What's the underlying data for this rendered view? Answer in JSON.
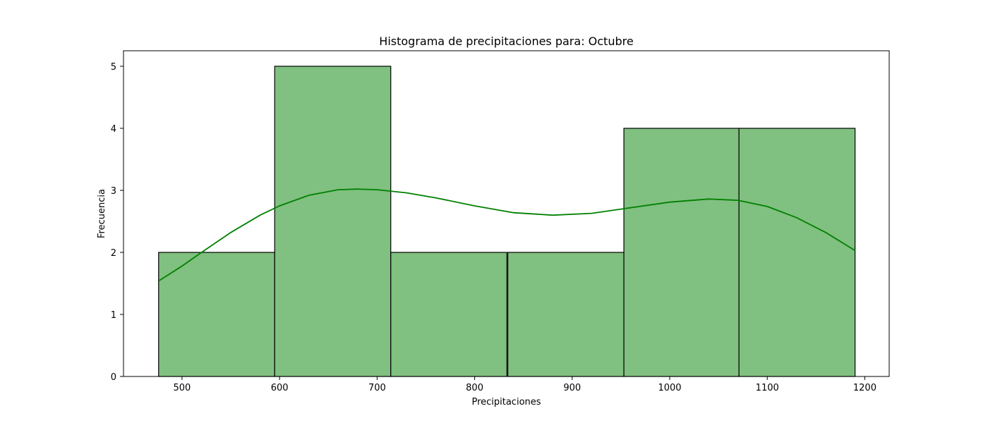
{
  "chart_data": {
    "type": "bar",
    "subtype": "histogram",
    "title": "Histograma de precipitaciones para: Octubre",
    "xlabel": "Precipitaciones",
    "ylabel": "Frecuencia",
    "xlim": [
      440,
      1225
    ],
    "ylim": [
      0,
      5.25
    ],
    "x_ticks": [
      500,
      600,
      700,
      800,
      900,
      1000,
      1100,
      1200
    ],
    "y_ticks": [
      0,
      1,
      2,
      3,
      4,
      5
    ],
    "bins": [
      {
        "start": 476,
        "end": 595,
        "count": 2
      },
      {
        "start": 595,
        "end": 714,
        "count": 5
      },
      {
        "start": 714,
        "end": 833,
        "count": 2
      },
      {
        "start": 834,
        "end": 953,
        "count": 2
      },
      {
        "start": 953,
        "end": 1071,
        "count": 4
      },
      {
        "start": 1071,
        "end": 1190,
        "count": 4
      }
    ],
    "kde": {
      "x": [
        476,
        500,
        520,
        550,
        580,
        600,
        630,
        660,
        680,
        700,
        730,
        760,
        800,
        840,
        880,
        920,
        960,
        1000,
        1040,
        1070,
        1100,
        1130,
        1160,
        1190
      ],
      "y": [
        1.54,
        1.78,
        2.0,
        2.32,
        2.6,
        2.75,
        2.92,
        3.01,
        3.02,
        3.01,
        2.96,
        2.88,
        2.75,
        2.64,
        2.6,
        2.63,
        2.72,
        2.81,
        2.86,
        2.84,
        2.74,
        2.56,
        2.32,
        2.03
      ]
    },
    "grid": false,
    "colors": {
      "bar_fill": "#80c080",
      "bar_edge": "#000000",
      "kde_line": "#008000"
    }
  }
}
